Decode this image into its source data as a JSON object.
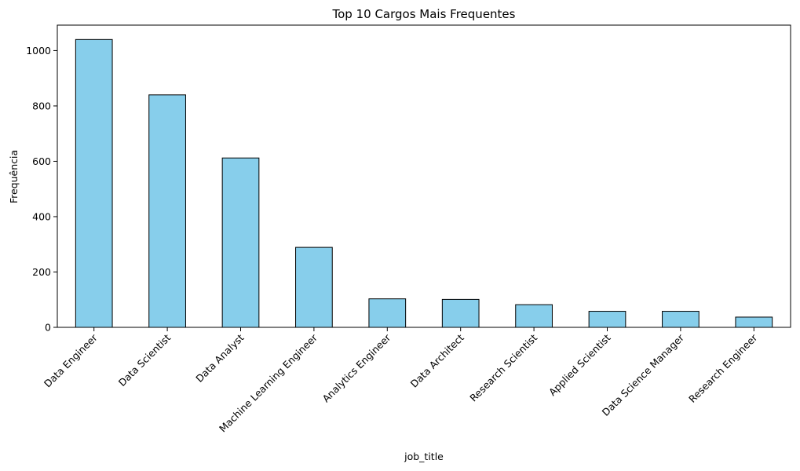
{
  "chart_data": {
    "type": "bar",
    "title": "Top 10 Cargos Mais Frequentes",
    "xlabel": "job_title",
    "ylabel": "Frequência",
    "categories": [
      "Data Engineer",
      "Data Scientist",
      "Data Analyst",
      "Machine Learning Engineer",
      "Analytics Engineer",
      "Data Architect",
      "Research Scientist",
      "Applied Scientist",
      "Data Science Manager",
      "Research Engineer"
    ],
    "values": [
      1040,
      840,
      612,
      289,
      103,
      101,
      82,
      58,
      58,
      37
    ],
    "ylim": [
      0,
      1092
    ],
    "yticks": [
      0,
      200,
      400,
      600,
      800,
      1000
    ],
    "bar_color": "#87CEEB",
    "edge_color": "#000000",
    "grid": false,
    "legend": false
  }
}
